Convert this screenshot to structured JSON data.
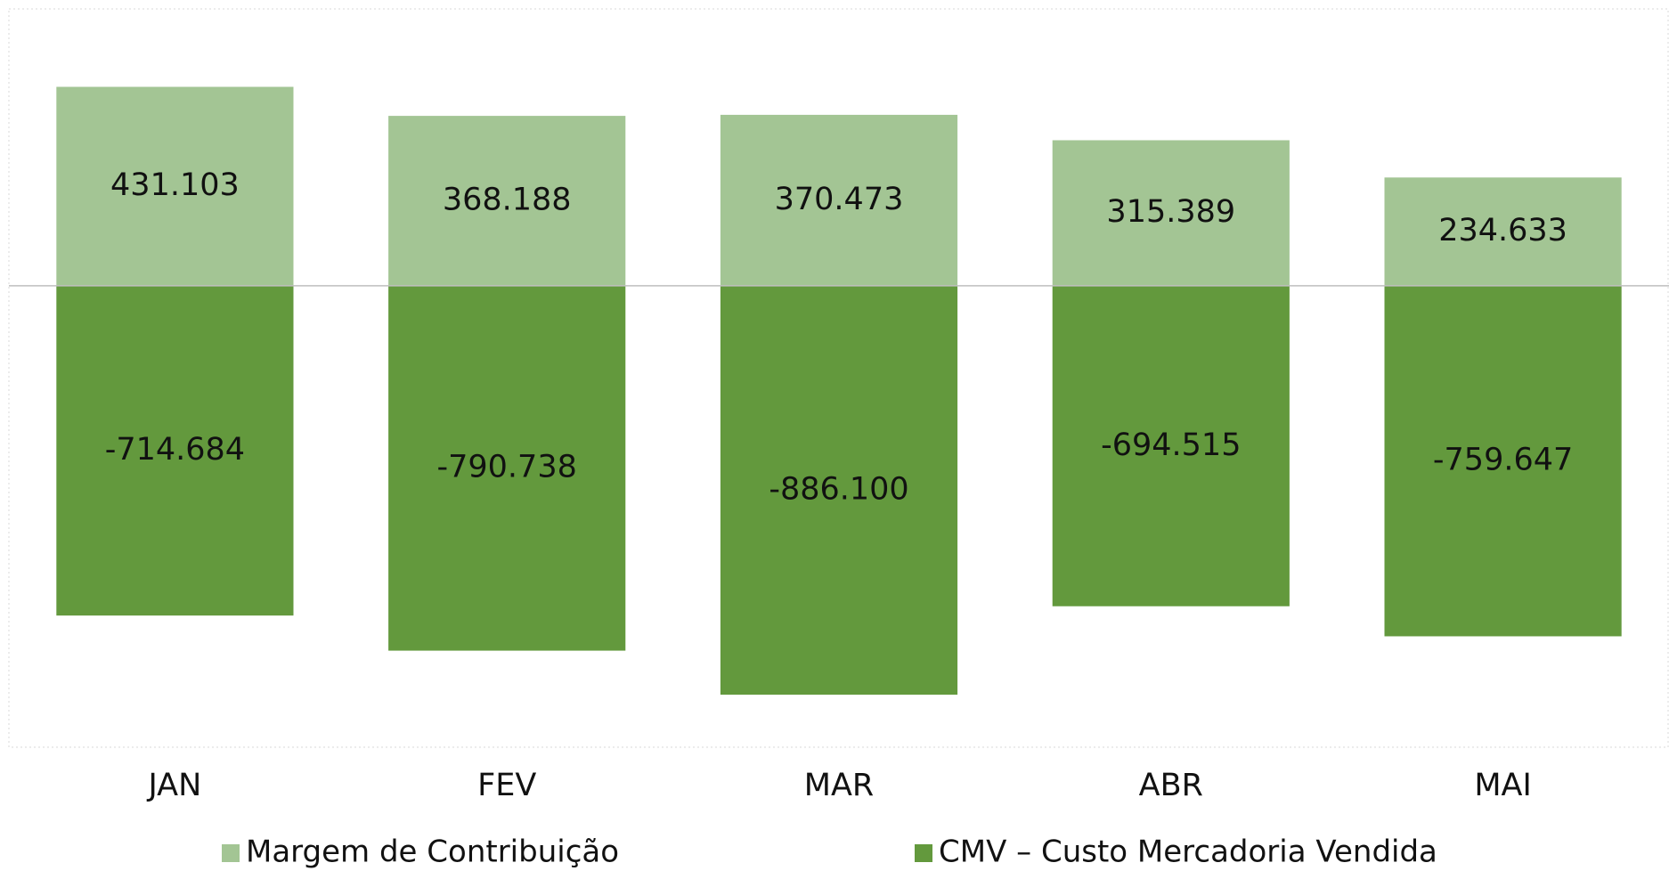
{
  "chart_data": {
    "type": "bar",
    "stacked": true,
    "categories": [
      "JAN",
      "FEV",
      "MAR",
      "ABR",
      "MAI"
    ],
    "series": [
      {
        "name": "Margem de Contribuição",
        "color": "#a3c594",
        "values": [
          431103,
          368188,
          370473,
          315389,
          234633
        ],
        "value_labels": [
          "431.103",
          "368.188",
          "370.473",
          "315.389",
          "234.633"
        ]
      },
      {
        "name": "CMV – Custo Mercadoria Vendida",
        "color": "#63993d",
        "values": [
          -714684,
          -790738,
          -886100,
          -694515,
          -759647
        ],
        "value_labels": [
          "-714.684",
          "-790.738",
          "-886.100",
          "-694.515",
          "-759.647"
        ]
      }
    ],
    "ylim": [
      -1000000,
      600000
    ],
    "legend": "bottom"
  }
}
